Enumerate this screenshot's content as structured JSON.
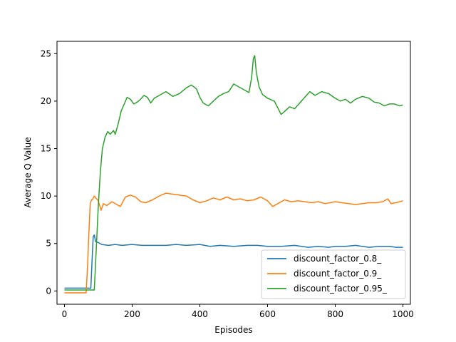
{
  "chart_data": {
    "type": "line",
    "title": "",
    "xlabel": "Episodes",
    "ylabel": "Average Q Value",
    "xlim": [
      -22,
      1022
    ],
    "ylim": [
      -1.4,
      26.3
    ],
    "xticks": [
      0,
      200,
      400,
      600,
      800,
      1000
    ],
    "yticks": [
      0,
      5,
      10,
      15,
      20,
      25
    ],
    "grid": false,
    "legend": "lower-right",
    "series": [
      {
        "name": "discount_factor_0.8_",
        "color": "#1f77b4",
        "points": [
          [
            0,
            0.3
          ],
          [
            60,
            0.3
          ],
          [
            78,
            0.3
          ],
          [
            82,
            3.5
          ],
          [
            85,
            5.7
          ],
          [
            88,
            5.9
          ],
          [
            92,
            5.2
          ],
          [
            100,
            5.1
          ],
          [
            110,
            4.9
          ],
          [
            130,
            4.8
          ],
          [
            150,
            4.9
          ],
          [
            170,
            4.8
          ],
          [
            200,
            4.9
          ],
          [
            230,
            4.8
          ],
          [
            260,
            4.8
          ],
          [
            300,
            4.8
          ],
          [
            330,
            4.9
          ],
          [
            360,
            4.8
          ],
          [
            400,
            4.9
          ],
          [
            430,
            4.7
          ],
          [
            460,
            4.8
          ],
          [
            500,
            4.7
          ],
          [
            540,
            4.8
          ],
          [
            570,
            4.8
          ],
          [
            600,
            4.7
          ],
          [
            640,
            4.7
          ],
          [
            680,
            4.8
          ],
          [
            700,
            4.7
          ],
          [
            720,
            4.6
          ],
          [
            750,
            4.7
          ],
          [
            780,
            4.6
          ],
          [
            800,
            4.7
          ],
          [
            830,
            4.7
          ],
          [
            860,
            4.8
          ],
          [
            900,
            4.6
          ],
          [
            930,
            4.7
          ],
          [
            960,
            4.7
          ],
          [
            980,
            4.6
          ],
          [
            1000,
            4.6
          ]
        ]
      },
      {
        "name": "discount_factor_0.9_",
        "color": "#ff7f0e",
        "points": [
          [
            0,
            -0.2
          ],
          [
            60,
            -0.2
          ],
          [
            64,
            -0.2
          ],
          [
            68,
            2.5
          ],
          [
            72,
            6.0
          ],
          [
            76,
            9.2
          ],
          [
            80,
            9.6
          ],
          [
            84,
            9.7
          ],
          [
            88,
            10.0
          ],
          [
            95,
            9.7
          ],
          [
            100,
            9.5
          ],
          [
            108,
            8.5
          ],
          [
            115,
            9.2
          ],
          [
            125,
            9.0
          ],
          [
            140,
            9.4
          ],
          [
            155,
            9.1
          ],
          [
            165,
            8.9
          ],
          [
            180,
            9.9
          ],
          [
            195,
            10.1
          ],
          [
            210,
            9.9
          ],
          [
            225,
            9.4
          ],
          [
            240,
            9.3
          ],
          [
            260,
            9.6
          ],
          [
            280,
            10.0
          ],
          [
            300,
            10.3
          ],
          [
            320,
            10.2
          ],
          [
            340,
            10.1
          ],
          [
            360,
            10.0
          ],
          [
            380,
            9.6
          ],
          [
            400,
            9.3
          ],
          [
            420,
            9.5
          ],
          [
            440,
            9.8
          ],
          [
            460,
            9.6
          ],
          [
            480,
            9.9
          ],
          [
            500,
            9.6
          ],
          [
            520,
            9.7
          ],
          [
            540,
            9.5
          ],
          [
            560,
            9.6
          ],
          [
            580,
            9.9
          ],
          [
            600,
            9.5
          ],
          [
            615,
            8.9
          ],
          [
            630,
            9.2
          ],
          [
            650,
            9.6
          ],
          [
            670,
            9.4
          ],
          [
            690,
            9.5
          ],
          [
            710,
            9.4
          ],
          [
            730,
            9.3
          ],
          [
            750,
            9.4
          ],
          [
            770,
            9.2
          ],
          [
            800,
            9.4
          ],
          [
            820,
            9.3
          ],
          [
            840,
            9.2
          ],
          [
            860,
            9.1
          ],
          [
            880,
            9.2
          ],
          [
            900,
            9.3
          ],
          [
            920,
            9.3
          ],
          [
            940,
            9.4
          ],
          [
            955,
            9.7
          ],
          [
            965,
            9.2
          ],
          [
            980,
            9.3
          ],
          [
            1000,
            9.5
          ]
        ]
      },
      {
        "name": "discount_factor_0.95_",
        "color": "#2ca02c",
        "points": [
          [
            0,
            0.1
          ],
          [
            80,
            0.1
          ],
          [
            88,
            0.1
          ],
          [
            92,
            3.0
          ],
          [
            96,
            6.0
          ],
          [
            100,
            9.0
          ],
          [
            106,
            12.5
          ],
          [
            112,
            15.0
          ],
          [
            120,
            16.2
          ],
          [
            128,
            16.8
          ],
          [
            135,
            16.5
          ],
          [
            145,
            16.9
          ],
          [
            150,
            16.5
          ],
          [
            158,
            17.5
          ],
          [
            168,
            19.0
          ],
          [
            178,
            19.8
          ],
          [
            185,
            20.4
          ],
          [
            195,
            20.2
          ],
          [
            205,
            19.7
          ],
          [
            215,
            19.9
          ],
          [
            225,
            20.2
          ],
          [
            235,
            20.6
          ],
          [
            245,
            20.4
          ],
          [
            255,
            19.8
          ],
          [
            265,
            20.3
          ],
          [
            280,
            20.6
          ],
          [
            300,
            21.0
          ],
          [
            320,
            20.5
          ],
          [
            340,
            20.8
          ],
          [
            360,
            21.4
          ],
          [
            375,
            21.7
          ],
          [
            390,
            21.3
          ],
          [
            400,
            20.4
          ],
          [
            410,
            19.8
          ],
          [
            425,
            19.5
          ],
          [
            440,
            20.0
          ],
          [
            455,
            20.5
          ],
          [
            470,
            20.8
          ],
          [
            485,
            21.0
          ],
          [
            500,
            21.8
          ],
          [
            515,
            21.5
          ],
          [
            530,
            21.2
          ],
          [
            545,
            20.9
          ],
          [
            553,
            22.5
          ],
          [
            558,
            24.5
          ],
          [
            562,
            24.8
          ],
          [
            567,
            23.0
          ],
          [
            575,
            21.5
          ],
          [
            585,
            20.7
          ],
          [
            600,
            20.3
          ],
          [
            620,
            20.0
          ],
          [
            630,
            19.3
          ],
          [
            640,
            18.6
          ],
          [
            650,
            18.9
          ],
          [
            665,
            19.4
          ],
          [
            680,
            19.2
          ],
          [
            700,
            20.0
          ],
          [
            715,
            20.6
          ],
          [
            725,
            21.0
          ],
          [
            740,
            20.6
          ],
          [
            760,
            21.0
          ],
          [
            780,
            20.8
          ],
          [
            800,
            20.3
          ],
          [
            815,
            20.0
          ],
          [
            830,
            20.2
          ],
          [
            845,
            19.8
          ],
          [
            860,
            20.2
          ],
          [
            880,
            20.5
          ],
          [
            900,
            20.3
          ],
          [
            915,
            19.9
          ],
          [
            930,
            19.8
          ],
          [
            945,
            19.5
          ],
          [
            960,
            19.7
          ],
          [
            975,
            19.7
          ],
          [
            990,
            19.5
          ],
          [
            1000,
            19.6
          ]
        ]
      }
    ]
  }
}
